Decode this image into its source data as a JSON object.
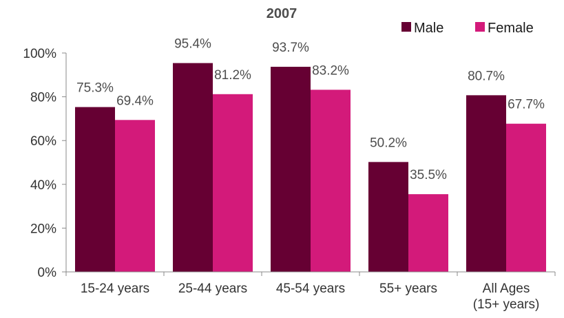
{
  "chart_data": {
    "type": "bar",
    "title": "2007",
    "categories": [
      [
        "15-24 years"
      ],
      [
        "25-44 years"
      ],
      [
        "45-54 years"
      ],
      [
        "55+ years"
      ],
      [
        "All Ages",
        "(15+ years)"
      ]
    ],
    "series": [
      {
        "name": "Male",
        "color": "#660033",
        "values": [
          75.3,
          95.4,
          93.7,
          50.2,
          80.7
        ],
        "labels": [
          "75.3%",
          "95.4%",
          "93.7%",
          "50.2%",
          "80.7%"
        ]
      },
      {
        "name": "Female",
        "color": "#d31a7a",
        "values": [
          69.4,
          81.2,
          83.2,
          35.5,
          67.7
        ],
        "labels": [
          "69.4%",
          "81.2%",
          "83.2%",
          "35.5%",
          "67.7%"
        ]
      }
    ],
    "ylim": [
      0,
      100
    ],
    "yticks": [
      0,
      20,
      40,
      60,
      80,
      100
    ],
    "ytick_labels": [
      "0%",
      "20%",
      "40%",
      "60%",
      "80%",
      "100%"
    ],
    "xlabel": "",
    "ylabel": "",
    "grid": false,
    "legend_position": "top-right"
  }
}
